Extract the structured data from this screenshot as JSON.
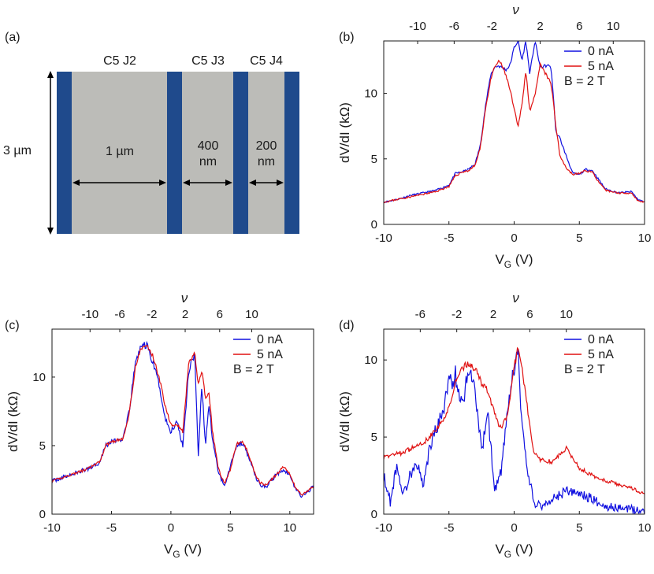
{
  "figure": {
    "panel_a": {
      "label": "(a)",
      "junction_labels": [
        "C5 J2",
        "C5 J3",
        "C5 J4"
      ],
      "height_label": "3 µm",
      "gap_labels": [
        [
          "1 µm"
        ],
        [
          "400",
          "nm"
        ],
        [
          "200",
          "nm"
        ]
      ],
      "colors": {
        "electrode": "#1f4a8c",
        "channel": "#bcbcb8"
      }
    }
  },
  "chart_data": [
    {
      "panel": "(b)",
      "type": "line",
      "xlabel": "V",
      "xlabel_sub": "G",
      "xlabel_unit": " (V)",
      "ylabel": "dV/dI (kΩ)",
      "top_label": "ν",
      "xlim": [
        -10,
        10
      ],
      "ylim": [
        0,
        14
      ],
      "xticks": [
        -10,
        -5,
        0,
        5,
        10
      ],
      "yticks": [
        0,
        5,
        10
      ],
      "top_ticks": {
        "values": [
          "-10",
          "-6",
          "-2",
          "2",
          "6",
          "10"
        ],
        "positions_vg": [
          -7.4,
          -4.6,
          -1.7,
          2.0,
          5.0,
          7.6
        ]
      },
      "legend": {
        "placement": "top-right",
        "entries": [
          "0 nA",
          "5 nA"
        ],
        "note": "B = 2 T"
      },
      "series": [
        {
          "name": "0 nA",
          "color": "#1010e0",
          "x": [
            -10,
            -9,
            -8,
            -7,
            -6,
            -5,
            -4.5,
            -4,
            -3.5,
            -3,
            -2.6,
            -2.2,
            -1.8,
            -1.5,
            -1.2,
            -1,
            -0.6,
            -0.3,
            0,
            0.3,
            0.6,
            0.9,
            1.2,
            1.6,
            2,
            2.4,
            2.8,
            3,
            3.2,
            3.5,
            4,
            4.5,
            5,
            5.5,
            6,
            6.5,
            7,
            8,
            9,
            9.5,
            10
          ],
          "y": [
            1.7,
            1.9,
            2.2,
            2.4,
            2.6,
            3.0,
            3.9,
            4.0,
            4.2,
            4.6,
            6.0,
            9.0,
            11.4,
            12.0,
            12.1,
            12.0,
            11.8,
            12.2,
            13.5,
            14,
            12.5,
            14,
            11.5,
            14,
            12.0,
            12.1,
            12.1,
            10.0,
            7.0,
            6.6,
            5.2,
            3.9,
            3.8,
            4.2,
            4.1,
            3.4,
            2.7,
            2.4,
            2.5,
            1.9,
            1.7
          ]
        },
        {
          "name": "5 nA",
          "color": "#e01010",
          "x": [
            -10,
            -9,
            -8,
            -7,
            -6,
            -5,
            -4.5,
            -4,
            -3.5,
            -3,
            -2.6,
            -2.2,
            -1.8,
            -1.5,
            -1.2,
            -1,
            -0.6,
            -0.3,
            0,
            0.3,
            0.6,
            0.9,
            1.2,
            1.6,
            2,
            2.4,
            2.8,
            3,
            3.2,
            3.5,
            4,
            4.5,
            5,
            5.5,
            6,
            6.5,
            7,
            8,
            9,
            9.5,
            10
          ],
          "y": [
            1.7,
            1.9,
            2.1,
            2.3,
            2.5,
            2.9,
            3.7,
            4.0,
            4.1,
            4.5,
            5.8,
            8.8,
            11.0,
            12.0,
            12.4,
            12.3,
            11.3,
            10.2,
            8.8,
            7.4,
            9.2,
            11.7,
            8.7,
            9.8,
            12.2,
            11.5,
            10.8,
            9.5,
            7.5,
            5.3,
            4.3,
            3.8,
            3.9,
            4.1,
            4.0,
            3.2,
            2.6,
            2.4,
            2.4,
            1.8,
            1.7
          ]
        }
      ]
    },
    {
      "panel": "(c)",
      "type": "line",
      "xlabel": "V",
      "xlabel_sub": "G",
      "xlabel_unit": " (V)",
      "ylabel": "dV/dI (kΩ)",
      "top_label": "ν",
      "xlim": [
        -10,
        12
      ],
      "ylim": [
        0,
        13.5
      ],
      "xticks": [
        -10,
        -5,
        0,
        5,
        10
      ],
      "yticks": [
        0,
        5,
        10
      ],
      "top_ticks": {
        "values": [
          "-10",
          "-6",
          "-2",
          "2",
          "6",
          "10"
        ],
        "positions_vg": [
          -6.8,
          -4.3,
          -1.6,
          1.2,
          4.1,
          6.8
        ]
      },
      "legend": {
        "placement": "top-right",
        "entries": [
          "0 nA",
          "5 nA"
        ],
        "note": "B = 2 T"
      },
      "series": [
        {
          "name": "0 nA",
          "color": "#1010e0",
          "x": [
            -10,
            -9,
            -8,
            -7,
            -6,
            -5.5,
            -5,
            -4,
            -3.5,
            -3,
            -2.5,
            -2,
            -1.5,
            -1,
            -0.5,
            0,
            0.5,
            1,
            1.5,
            2,
            2.3,
            2.6,
            2.9,
            3.2,
            3.5,
            4,
            4.5,
            5,
            5.5,
            6,
            6.5,
            7,
            7.5,
            8,
            9,
            9.5,
            10,
            10.5,
            11,
            12
          ],
          "y": [
            2.4,
            2.7,
            3.0,
            3.3,
            3.8,
            5.0,
            5.3,
            5.5,
            7.5,
            11.0,
            12.3,
            12.3,
            11.0,
            9.5,
            7.0,
            6.0,
            6.8,
            5.0,
            10.5,
            11.8,
            4.0,
            9.5,
            5.0,
            8.0,
            5.5,
            3.0,
            2.1,
            3.5,
            5.0,
            5.2,
            4.3,
            3.0,
            2.1,
            2.0,
            3.0,
            3.3,
            2.8,
            1.8,
            1.3,
            2.0
          ]
        },
        {
          "name": "5 nA",
          "color": "#e01010",
          "x": [
            -10,
            -9,
            -8,
            -7,
            -6,
            -5.5,
            -5,
            -4,
            -3.5,
            -3,
            -2.5,
            -2,
            -1.5,
            -1,
            -0.5,
            0,
            0.5,
            1,
            1.5,
            2,
            2.3,
            2.6,
            2.9,
            3.2,
            3.5,
            4,
            4.5,
            5,
            5.5,
            6,
            6.5,
            7,
            7.5,
            8,
            9,
            9.5,
            10,
            10.5,
            11,
            12
          ],
          "y": [
            2.4,
            2.7,
            3.0,
            3.3,
            3.8,
            5.0,
            5.3,
            5.5,
            7.4,
            10.7,
            12.1,
            12.3,
            11.5,
            10.0,
            8.0,
            6.5,
            6.6,
            6.0,
            11.0,
            11.7,
            9.5,
            10.5,
            8.5,
            8.8,
            6.0,
            3.3,
            2.2,
            3.2,
            5.1,
            5.3,
            4.5,
            3.1,
            2.3,
            2.1,
            3.0,
            3.5,
            2.9,
            1.9,
            1.4,
            2.0
          ]
        }
      ]
    },
    {
      "panel": "(d)",
      "type": "line",
      "xlabel": "V",
      "xlabel_sub": "G",
      "xlabel_unit": " (V)",
      "ylabel": "dV/dI (kΩ)",
      "top_label": "ν",
      "xlim": [
        -10,
        10
      ],
      "ylim": [
        0,
        12
      ],
      "xticks": [
        -10,
        -5,
        0,
        5,
        10
      ],
      "yticks": [
        0,
        5,
        10
      ],
      "top_ticks": {
        "values": [
          "-6",
          "-2",
          "2",
          "6",
          "10"
        ],
        "positions_vg": [
          -7.2,
          -4.4,
          -1.6,
          1.2,
          4.0
        ]
      },
      "legend": {
        "placement": "top-right",
        "entries": [
          "0 nA",
          "5 nA"
        ],
        "note": "B = 2 T"
      },
      "series": [
        {
          "name": "0 nA",
          "color": "#1010e0",
          "x": [
            -10,
            -9.5,
            -9,
            -8.5,
            -8,
            -7.5,
            -7,
            -6.5,
            -6,
            -5.5,
            -5,
            -4.5,
            -4,
            -3.5,
            -3,
            -2.5,
            -2,
            -1.5,
            -1,
            -0.5,
            0,
            0.3,
            0.6,
            1,
            1.5,
            2,
            3,
            4,
            5,
            6,
            7,
            8,
            9,
            10
          ],
          "y": [
            2.5,
            0.8,
            3.2,
            1.2,
            2.5,
            3.5,
            1.8,
            4.2,
            5.5,
            6.5,
            8.5,
            9.0,
            7.0,
            9.5,
            8.2,
            4.0,
            6.5,
            1.5,
            2.8,
            6.5,
            9.5,
            10.5,
            5.5,
            3.0,
            0.8,
            0.5,
            1.0,
            1.5,
            1.3,
            1.0,
            0.5,
            0.4,
            0.3,
            0.2
          ]
        },
        {
          "name": "5 nA",
          "color": "#e01010",
          "x": [
            -10,
            -9.5,
            -9,
            -8.5,
            -8,
            -7.5,
            -7,
            -6.5,
            -6,
            -5.5,
            -5,
            -4.5,
            -4,
            -3.5,
            -3,
            -2.5,
            -2,
            -1.5,
            -1,
            -0.5,
            0,
            0.3,
            0.6,
            1,
            1.5,
            2,
            3,
            4,
            5,
            6,
            7,
            8,
            9,
            10
          ],
          "y": [
            3.7,
            3.8,
            3.9,
            4.0,
            4.2,
            4.4,
            4.6,
            5.0,
            5.5,
            6.0,
            7.0,
            8.5,
            9.5,
            9.7,
            9.5,
            8.5,
            8.0,
            6.5,
            5.5,
            6.5,
            9.5,
            10.8,
            9.5,
            7.0,
            4.0,
            3.5,
            3.4,
            4.3,
            3.0,
            2.5,
            2.2,
            1.9,
            1.7,
            1.3
          ]
        }
      ]
    }
  ]
}
